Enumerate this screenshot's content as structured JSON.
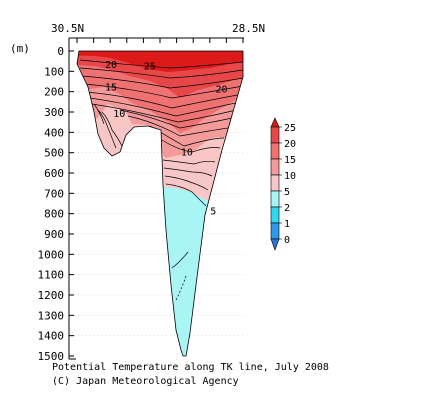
{
  "chart_data": {
    "type": "contour-section",
    "title": "Potential Temperature along TK line, July 2008",
    "credit": "(C) Japan Meteorological Agency",
    "x_left_label": "30.5N",
    "x_right_label": "28.5N",
    "xlim": [
      30.5,
      28.5
    ],
    "y_unit": "(m)",
    "ylim": [
      0,
      1500
    ],
    "y_ticks": [
      0,
      100,
      200,
      300,
      400,
      500,
      600,
      700,
      800,
      900,
      1000,
      1100,
      1200,
      1300,
      1400,
      1500
    ],
    "colorbar": {
      "levels": [
        "25",
        "20",
        "15",
        "10",
        "5",
        "2",
        "1",
        "0"
      ],
      "colors": [
        "#dd1a1a",
        "#e8474a",
        "#ef7273",
        "#f39b9b",
        "#f7c6c6",
        "#a9f4f4",
        "#2ed8ee",
        "#2e99ea",
        "#2d73dc"
      ]
    },
    "contour_labels": [
      {
        "text": "25",
        "lat": 29.63,
        "depth": 75
      },
      {
        "text": "20",
        "lat": 30.1,
        "depth": 70
      },
      {
        "text": "20",
        "lat": 28.76,
        "depth": 190
      },
      {
        "text": "15",
        "lat": 30.1,
        "depth": 180
      },
      {
        "text": "10",
        "lat": 30.0,
        "depth": 310
      },
      {
        "text": "10",
        "lat": 29.18,
        "depth": 500
      },
      {
        "text": "5",
        "lat": 28.86,
        "depth": 790
      }
    ]
  }
}
